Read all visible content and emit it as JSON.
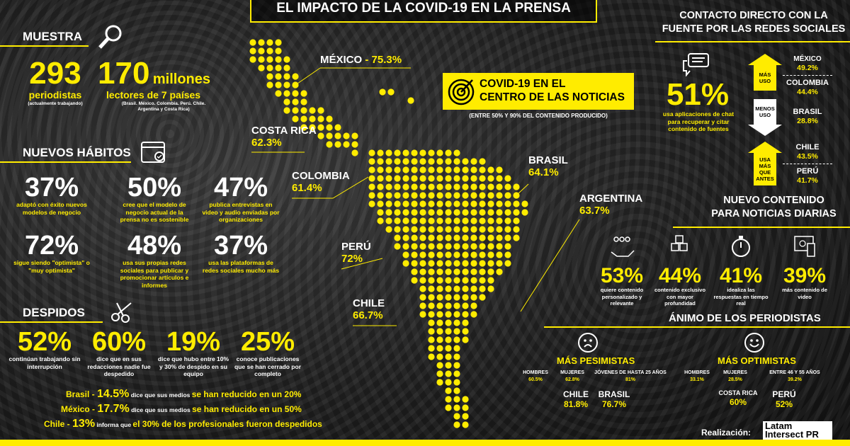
{
  "title": "EL IMPACTO DE LA COVID-19 EN LA PRENSA",
  "muestra": {
    "heading": "MUESTRA",
    "icon": "magnifier-icon",
    "journalists_value": "293",
    "journalists_label": "periodistas",
    "journalists_note": "(actualmente trabajando)",
    "readers_value": "170",
    "readers_unit": "millones",
    "readers_label": "lectores de 7 países",
    "readers_note_1": "(Brasil. México. Colombia. Perú. Chile.",
    "readers_note_2": "Argentina y Costa Rica)"
  },
  "habitos": {
    "heading": "NUEVOS HÁBITOS",
    "icon": "calendar-check-icon",
    "items": [
      {
        "value": "37%",
        "text": "adaptó con éxito nuevos modelos de negocio"
      },
      {
        "value": "50%",
        "text": "cree que el modelo de negocio actual de la prensa no es sostenible"
      },
      {
        "value": "47%",
        "text": "publica entrevistas en video y audio enviadas por organizaciones"
      },
      {
        "value": "72%",
        "text": "sigue siendo \"optimista\" o \"muy optimista\""
      },
      {
        "value": "48%",
        "text": "usa sus propias redes sociales para publicar y promocionar artículos e informes"
      },
      {
        "value": "37%",
        "text": "usa las plataformas de redes sociales mucho más"
      }
    ]
  },
  "despidos": {
    "heading": "DESPIDOS",
    "icon": "scissors-icon",
    "items": [
      {
        "value": "52%",
        "text": "continúan trabajando sin interrupción"
      },
      {
        "value": "60%",
        "text": "dice que en sus redacciones nadie fue despedido"
      },
      {
        "value": "19%",
        "text": "dice que hubo entre 10% y 30% de despido en su equipo"
      },
      {
        "value": "25%",
        "text": "conoce publicaciones que se han cerrado por completo"
      }
    ],
    "countries": [
      {
        "country": "Brasil - ",
        "value": "14.5%",
        "mid": " dice que sus medios ",
        "end": "se han reducido en un 20%"
      },
      {
        "country": "México - ",
        "value": "17.7%",
        "mid": " dice que sus medios ",
        "end": "se han reducido en un 50%"
      },
      {
        "country": "Chile - ",
        "value": "13%",
        "mid": " informa que ",
        "end": "el 30% de los profesionales fueron despedidos"
      }
    ]
  },
  "map": {
    "countries": [
      {
        "name": "MÉXICO",
        "sep": " - ",
        "value": "75.3%"
      },
      {
        "name": "COSTA RICA",
        "value": "62.3%"
      },
      {
        "name": "COLOMBIA",
        "value": "61.4%"
      },
      {
        "name": "PERÚ",
        "value": "72%"
      },
      {
        "name": "CHILE",
        "value": "66.7%"
      },
      {
        "name": "BRASIL",
        "value": "64.1%"
      },
      {
        "name": "ARGENTINA",
        "value": "63.7%"
      }
    ],
    "dot_color": "#ffec00"
  },
  "centro": {
    "icon": "target-icon",
    "line1": "COVID-19 EN EL",
    "line2": "CENTRO DE LAS NOTICIAS",
    "note": "(ENTRE 50% Y 90% DEL CONTENIDO PRODUCIDO)"
  },
  "contacto": {
    "heading1": "CONTACTO DIRECTO CON LA",
    "heading2": "FUENTE POR LAS REDES SOCIALES",
    "icon": "chat-bubbles-icon",
    "value": "51%",
    "text": "usa aplicaciones de chat para recuperar y citar contenido de fuentes",
    "arrows": [
      {
        "label": "MÁS USO"
      },
      {
        "label": "MENOS USO"
      },
      {
        "label": "USA MÁS QUE ANTES"
      }
    ],
    "countries": [
      {
        "name": "MÉXICO",
        "value": "49.2%"
      },
      {
        "name": "COLOMBIA",
        "value": "44.4%"
      },
      {
        "name": "BRASIL",
        "value": "28.8%"
      },
      {
        "name": "CHILE",
        "value": "43.5%"
      },
      {
        "name": "PERÚ",
        "value": "41.7%"
      }
    ]
  },
  "contenido": {
    "heading1": "NUEVO CONTENIDO",
    "heading2": "PARA NOTICIAS DIARIAS",
    "items": [
      {
        "icon": "people-hand-icon",
        "value": "53%",
        "text": "quiere contenido personalizado y relevante"
      },
      {
        "icon": "cubes-icon",
        "value": "44%",
        "text": "contenido exclusivo con mayor profundidad"
      },
      {
        "icon": "stopwatch-icon",
        "value": "41%",
        "text": "idealiza las respuestas en tiempo real"
      },
      {
        "icon": "video-devices-icon",
        "value": "39%",
        "text": "más contenido de video"
      }
    ]
  },
  "animo": {
    "heading": "ÁNIMO DE LOS PERIODISTAS",
    "pesimistas": {
      "icon": "sad-face-icon",
      "title": "MÁS PESIMISTAS",
      "groups": [
        {
          "label": "HOMBRES",
          "value": "60.5%"
        },
        {
          "label": "MUJERES",
          "value": "62.8%"
        },
        {
          "label": "JÓVENES DE HASTA 25 AÑOS",
          "value": "81%"
        }
      ],
      "countries": [
        {
          "name": "CHILE",
          "value": "81.8%"
        },
        {
          "name": "BRASIL",
          "value": "76.7%"
        }
      ]
    },
    "optimistas": {
      "icon": "happy-face-icon",
      "title": "MÁS OPTIMISTAS",
      "groups": [
        {
          "label": "HOMBRES",
          "value": "33.1%"
        },
        {
          "label": "MUJERES",
          "value": "28.5%"
        },
        {
          "label": "ENTRE 46 Y 55 AÑOS",
          "value": "39.2%"
        }
      ],
      "countries": [
        {
          "name": "COSTA RICA",
          "value": "60%"
        },
        {
          "name": "PERÚ",
          "value": "52%"
        }
      ]
    }
  },
  "footer": {
    "credit": "Realización:",
    "logo_line1": "Latam",
    "logo_line2": "Intersect PR"
  }
}
